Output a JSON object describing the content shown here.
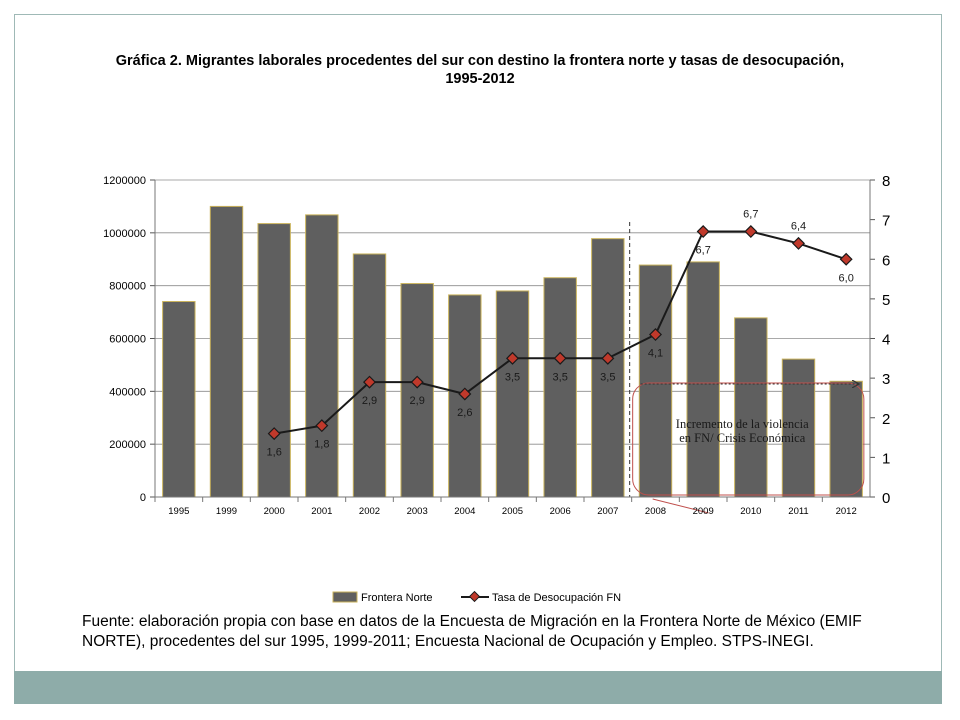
{
  "chart_data": {
    "type": "bar",
    "title": "Gráfica 2. Migrantes laborales procedentes del sur con destino la frontera norte y tasas de desocupación, 1995-2012",
    "categories": [
      "1995",
      "1999",
      "2000",
      "2001",
      "2002",
      "2003",
      "2004",
      "2005",
      "2006",
      "2007",
      "2008",
      "2009",
      "2010",
      "2011",
      "2012"
    ],
    "y_left": {
      "min": 0,
      "max": 1200000,
      "ticks": [
        "0",
        "200000",
        "400000",
        "600000",
        "800000",
        "1000000",
        "1200000"
      ]
    },
    "y_right": {
      "min": 0,
      "max": 8,
      "ticks": [
        "0",
        "1",
        "2",
        "3",
        "4",
        "5",
        "6",
        "7",
        "8"
      ]
    },
    "series": [
      {
        "name": "Frontera Norte",
        "type": "bar",
        "axis": "left",
        "color": "#5f5f5f",
        "values": [
          740000,
          1100000,
          1035000,
          1068000,
          920000,
          808000,
          765000,
          780000,
          830000,
          978000,
          878000,
          890000,
          678000,
          522000,
          438000
        ]
      },
      {
        "name": "Tasa de Desocupación FN",
        "type": "line",
        "axis": "right",
        "color": "#1a1a1a",
        "marker_color": "#c0392b",
        "values": [
          null,
          null,
          1.6,
          1.8,
          2.9,
          2.9,
          2.6,
          3.5,
          3.5,
          3.5,
          4.1,
          6.7,
          6.7,
          6.4,
          6.0
        ],
        "labels": [
          "",
          "",
          "1,6",
          "1,8",
          "2,9",
          "2,9",
          "2,6",
          "3,5",
          "3,5",
          "3,5",
          "4,1",
          "6,7",
          "6,7",
          "6,4",
          "6,0"
        ]
      }
    ],
    "annotation": "Incremento de la violencia en FN/ Crisis Económica",
    "grid": true,
    "legend_position": "bottom"
  },
  "source_note": "Fuente: elaboración propia con base en datos de la Encuesta de Migración en la Frontera Norte de México (EMIF NORTE), procedentes del sur 1995, 1999-2011; Encuesta Nacional de Ocupación y Empleo. STPS-INEGI."
}
